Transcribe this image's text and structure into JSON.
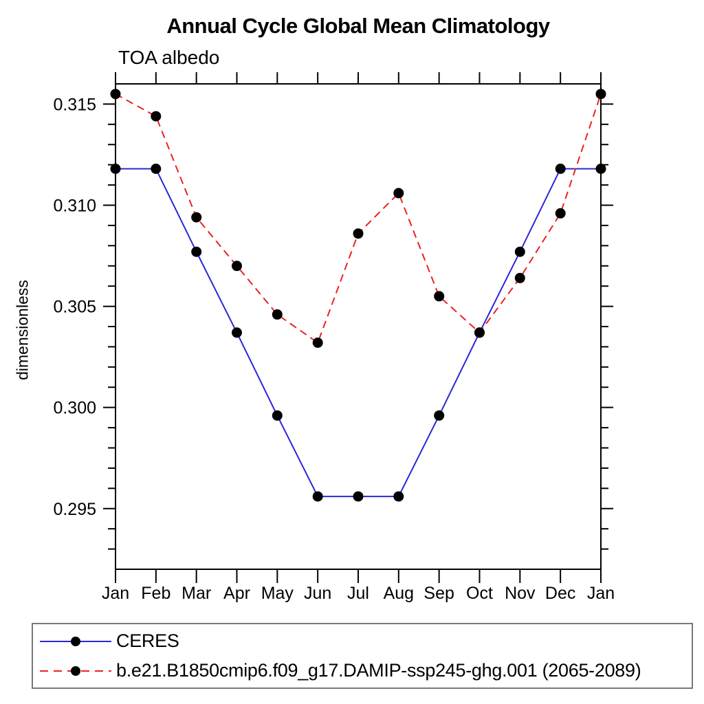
{
  "chart_data": {
    "type": "line",
    "title": "Annual Cycle Global Mean Climatology",
    "subtitle": "TOA albedo",
    "xlabel": "",
    "ylabel": "dimensionless",
    "categories": [
      "Jan",
      "Feb",
      "Mar",
      "Apr",
      "May",
      "Jun",
      "Jul",
      "Aug",
      "Sep",
      "Oct",
      "Nov",
      "Dec",
      "Jan"
    ],
    "ylim": [
      0.292,
      0.316
    ],
    "y_major_ticks": [
      0.295,
      0.3,
      0.305,
      0.31,
      0.315
    ],
    "y_minor_tick_step": 0.001,
    "grid": false,
    "legend_position": "bottom-left-box",
    "frame_color": "#000000",
    "marker_color": "#000000",
    "series": [
      {
        "name": "CERES",
        "color": "#2727d8",
        "line_style": "solid",
        "marker": "filled-circle",
        "values": [
          0.3118,
          0.3118,
          0.3077,
          0.3037,
          0.2996,
          0.2956,
          0.2956,
          0.2956,
          0.2996,
          0.3037,
          0.3077,
          0.3118,
          0.3118
        ]
      },
      {
        "name": "b.e21.B1850cmip6.f09_g17.DAMIP-ssp245-ghg.001 (2065-2089)",
        "color": "#ec2020",
        "line_style": "dashed",
        "marker": "filled-circle",
        "values": [
          0.3155,
          0.3144,
          0.3094,
          0.307,
          0.3046,
          0.3032,
          0.3086,
          0.3106,
          0.3055,
          0.3037,
          0.3064,
          0.3096,
          0.3155
        ]
      }
    ]
  }
}
